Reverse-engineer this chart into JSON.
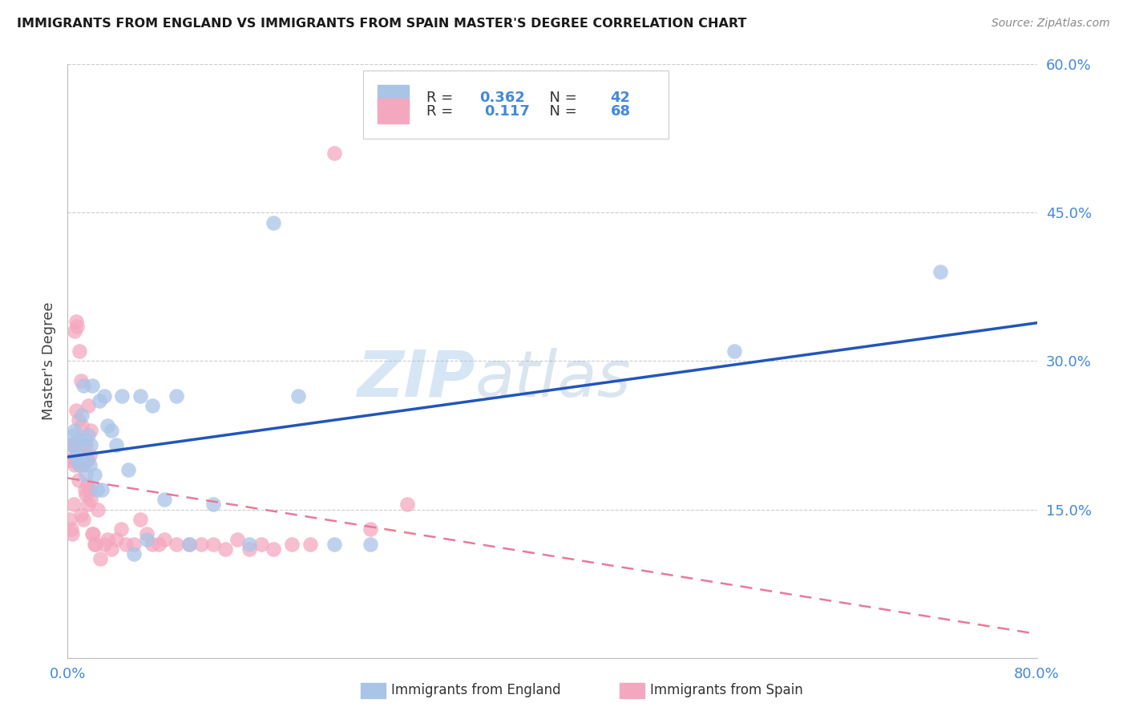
{
  "title": "IMMIGRANTS FROM ENGLAND VS IMMIGRANTS FROM SPAIN MASTER'S DEGREE CORRELATION CHART",
  "source": "Source: ZipAtlas.com",
  "ylabel": "Master's Degree",
  "xlim": [
    0.0,
    0.8
  ],
  "ylim": [
    0.0,
    0.6
  ],
  "yticks": [
    0.0,
    0.15,
    0.3,
    0.45,
    0.6
  ],
  "xticks": [
    0.0,
    0.2,
    0.4,
    0.6,
    0.8
  ],
  "england_R": 0.362,
  "england_N": 42,
  "spain_R": 0.117,
  "spain_N": 68,
  "england_color": "#aac4e8",
  "spain_color": "#f4a8c0",
  "england_line_color": "#2255bb",
  "spain_line_color": "#e87a9a",
  "tick_color": "#4488dd",
  "grid_color": "#cccccc",
  "watermark_color": "#a8c8e8",
  "england_x": [
    0.003,
    0.005,
    0.006,
    0.007,
    0.008,
    0.009,
    0.01,
    0.011,
    0.012,
    0.013,
    0.014,
    0.015,
    0.016,
    0.017,
    0.018,
    0.019,
    0.02,
    0.022,
    0.024,
    0.026,
    0.028,
    0.03,
    0.033,
    0.036,
    0.04,
    0.045,
    0.05,
    0.055,
    0.06,
    0.065,
    0.07,
    0.08,
    0.09,
    0.1,
    0.12,
    0.15,
    0.17,
    0.19,
    0.22,
    0.25,
    0.55,
    0.72
  ],
  "england_y": [
    0.215,
    0.225,
    0.23,
    0.21,
    0.2,
    0.22,
    0.195,
    0.205,
    0.245,
    0.275,
    0.22,
    0.185,
    0.2,
    0.225,
    0.195,
    0.215,
    0.275,
    0.185,
    0.17,
    0.26,
    0.17,
    0.265,
    0.235,
    0.23,
    0.215,
    0.265,
    0.19,
    0.105,
    0.265,
    0.12,
    0.255,
    0.16,
    0.265,
    0.115,
    0.155,
    0.115,
    0.44,
    0.265,
    0.115,
    0.115,
    0.31,
    0.39
  ],
  "spain_x": [
    0.001,
    0.002,
    0.003,
    0.003,
    0.004,
    0.004,
    0.005,
    0.005,
    0.006,
    0.006,
    0.007,
    0.007,
    0.008,
    0.008,
    0.009,
    0.009,
    0.01,
    0.01,
    0.011,
    0.011,
    0.012,
    0.012,
    0.013,
    0.013,
    0.014,
    0.014,
    0.015,
    0.015,
    0.016,
    0.016,
    0.017,
    0.017,
    0.018,
    0.018,
    0.019,
    0.019,
    0.02,
    0.021,
    0.022,
    0.023,
    0.025,
    0.027,
    0.03,
    0.033,
    0.036,
    0.04,
    0.044,
    0.048,
    0.055,
    0.06,
    0.065,
    0.07,
    0.075,
    0.08,
    0.09,
    0.1,
    0.11,
    0.12,
    0.13,
    0.14,
    0.15,
    0.16,
    0.17,
    0.185,
    0.2,
    0.22,
    0.25,
    0.28
  ],
  "spain_y": [
    0.2,
    0.14,
    0.215,
    0.13,
    0.125,
    0.2,
    0.155,
    0.215,
    0.195,
    0.33,
    0.25,
    0.34,
    0.335,
    0.2,
    0.18,
    0.24,
    0.195,
    0.31,
    0.145,
    0.28,
    0.235,
    0.2,
    0.195,
    0.14,
    0.17,
    0.205,
    0.165,
    0.215,
    0.175,
    0.2,
    0.155,
    0.255,
    0.17,
    0.205,
    0.16,
    0.23,
    0.125,
    0.125,
    0.115,
    0.115,
    0.15,
    0.1,
    0.115,
    0.12,
    0.11,
    0.12,
    0.13,
    0.115,
    0.115,
    0.14,
    0.125,
    0.115,
    0.115,
    0.12,
    0.115,
    0.115,
    0.115,
    0.115,
    0.11,
    0.12,
    0.11,
    0.115,
    0.11,
    0.115,
    0.115,
    0.51,
    0.13,
    0.155
  ]
}
